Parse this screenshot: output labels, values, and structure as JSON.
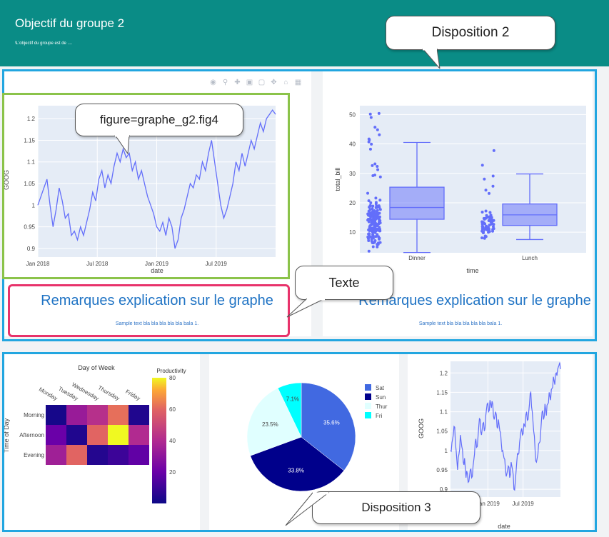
{
  "header": {
    "title": "Objectif du groupe 2",
    "subtitle": "\\L'objectif du groupe est de ...."
  },
  "callouts": {
    "disposition2": "Disposition 2",
    "figure": "figure=graphe_g2.fig4",
    "texte": "Texte",
    "disposition3": "Disposition 3"
  },
  "modebar": [
    "camera-icon",
    "zoom-icon",
    "pan-icon",
    "zoom-in-icon",
    "zoom-out-icon",
    "autoscale-icon",
    "home-icon",
    "spike-icon"
  ],
  "remarks": [
    {
      "title": "Remarques explication sur le graphe",
      "text": "Sample text bla bla bla bla bla bala 1."
    },
    {
      "title": "Remarques explication sur le graphe",
      "text": "Sample text bla bla bla bla bla bala 1."
    }
  ],
  "colors": {
    "header": "#0a8c86",
    "frame_blue": "#22a6e0",
    "frame_green": "#8bc34a",
    "frame_pink": "#e8336b",
    "series": "#636efa"
  },
  "chart_data": [
    {
      "id": "goog_line_1",
      "type": "line",
      "xlabel": "date",
      "ylabel": "GOOG",
      "xticks": [
        "Jan 2018",
        "Jul 2018",
        "Jan 2019",
        "Jul 2019"
      ],
      "yticks": [
        "0.9",
        "0.95",
        "1",
        "1.05",
        "1.1",
        "1.15",
        "1.2"
      ],
      "ylim": [
        0.88,
        1.23
      ],
      "values": [
        1.0,
        1.02,
        1.04,
        1.06,
        1.0,
        0.95,
        0.99,
        1.04,
        1.01,
        0.97,
        0.98,
        0.93,
        0.94,
        0.92,
        0.95,
        0.93,
        0.96,
        0.99,
        1.03,
        1.01,
        1.06,
        1.08,
        1.04,
        1.07,
        1.05,
        1.09,
        1.12,
        1.1,
        1.13,
        1.11,
        1.12,
        1.08,
        1.1,
        1.06,
        1.08,
        1.05,
        1.02,
        1.0,
        0.98,
        0.95,
        0.94,
        0.96,
        0.93,
        0.97,
        0.95,
        0.9,
        0.92,
        0.97,
        0.99,
        1.02,
        1.05,
        1.04,
        1.07,
        1.06,
        1.1,
        1.08,
        1.12,
        1.15,
        1.1,
        1.05,
        1.0,
        0.97,
        0.99,
        1.02,
        1.05,
        1.1,
        1.08,
        1.12,
        1.09,
        1.12,
        1.15,
        1.13,
        1.16,
        1.19,
        1.17,
        1.2,
        1.21,
        1.22,
        1.21
      ]
    },
    {
      "id": "tips_box",
      "type": "box",
      "xlabel": "time",
      "ylabel": "total_bill",
      "categories": [
        "Dinner",
        "Lunch"
      ],
      "yticks": [
        "10",
        "20",
        "30",
        "40",
        "50"
      ],
      "ylim": [
        3,
        53
      ],
      "boxes": [
        {
          "name": "Dinner",
          "min": 3.1,
          "q1": 14.4,
          "median": 18.4,
          "q3": 25.3,
          "max": 40.5
        },
        {
          "name": "Lunch",
          "min": 7.5,
          "q1": 12.3,
          "median": 15.9,
          "q3": 19.6,
          "max": 29.8
        }
      ]
    },
    {
      "id": "productivity_heatmap",
      "type": "heatmap",
      "title": "Day of Week",
      "ylabel": "Time of Day",
      "colorbar_title": "Productivity",
      "x": [
        "Monday",
        "Tuesday",
        "Wednesday",
        "Thursday",
        "Friday"
      ],
      "y": [
        "Morning",
        "Afternoon",
        "Evening"
      ],
      "z": [
        [
          2,
          33,
          42,
          62,
          4
        ],
        [
          20,
          4,
          60,
          80,
          40
        ],
        [
          35,
          60,
          5,
          10,
          18
        ]
      ],
      "colorbar_ticks": [
        "20",
        "40",
        "60",
        "80"
      ]
    },
    {
      "id": "tips_pie",
      "type": "pie",
      "labels": [
        "Sat",
        "Sun",
        "Thur",
        "Fri"
      ],
      "values": [
        35.6,
        33.8,
        23.5,
        7.1
      ],
      "percent_labels": [
        "35.6%",
        "33.8%",
        "23.5%",
        "7.1%"
      ],
      "colors": [
        "#4169e1",
        "#00008b",
        "#e0ffff",
        "#00ffff"
      ]
    },
    {
      "id": "goog_line_2",
      "type": "line",
      "xlabel": "date",
      "ylabel": "GOOG",
      "xticks": [
        "Jan 2019",
        "Jul 2019"
      ],
      "xtick_partial": "8",
      "yticks": [
        "0.9",
        "0.95",
        "1",
        "1.05",
        "1.1",
        "1.15",
        "1.2"
      ],
      "ylim": [
        0.88,
        1.23
      ]
    }
  ]
}
